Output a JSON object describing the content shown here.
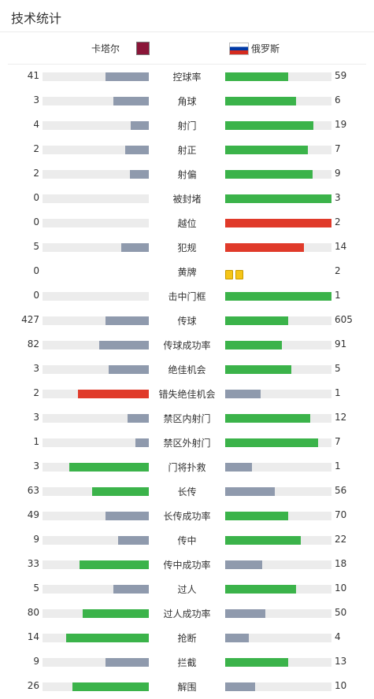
{
  "page": {
    "title": "技术统计"
  },
  "teams": {
    "home": {
      "name": "卡塔尔"
    },
    "away": {
      "name": "俄罗斯"
    }
  },
  "colors": {
    "winner": "#3bb34a",
    "loser": "#8f9aad",
    "red": "#e03a2a",
    "track": "#ececec",
    "yellow_card": "#f5c518"
  },
  "stats": [
    {
      "label": "控球率",
      "home": "41",
      "away": "59",
      "home_frac": 0.41,
      "away_frac": 0.59,
      "home_color": "loser",
      "away_color": "winner"
    },
    {
      "label": "角球",
      "home": "3",
      "away": "6",
      "home_frac": 0.333,
      "away_frac": 0.667,
      "home_color": "loser",
      "away_color": "winner"
    },
    {
      "label": "射门",
      "home": "4",
      "away": "19",
      "home_frac": 0.17,
      "away_frac": 0.83,
      "home_color": "loser",
      "away_color": "winner"
    },
    {
      "label": "射正",
      "home": "2",
      "away": "7",
      "home_frac": 0.22,
      "away_frac": 0.78,
      "home_color": "loser",
      "away_color": "winner"
    },
    {
      "label": "射偏",
      "home": "2",
      "away": "9",
      "home_frac": 0.18,
      "away_frac": 0.82,
      "home_color": "loser",
      "away_color": "winner"
    },
    {
      "label": "被封堵",
      "home": "0",
      "away": "3",
      "home_frac": 0,
      "away_frac": 1,
      "home_color": "loser",
      "away_color": "winner"
    },
    {
      "label": "越位",
      "home": "0",
      "away": "2",
      "home_frac": 0,
      "away_frac": 1,
      "home_color": "loser",
      "away_color": "red"
    },
    {
      "label": "犯规",
      "home": "5",
      "away": "14",
      "home_frac": 0.26,
      "away_frac": 0.74,
      "home_color": "loser",
      "away_color": "red"
    },
    {
      "label": "黄牌",
      "home": "0",
      "away": "2",
      "type": "cards",
      "home_cards": 0,
      "away_cards": 2
    },
    {
      "label": "击中门框",
      "home": "0",
      "away": "1",
      "home_frac": 0,
      "away_frac": 1,
      "home_color": "loser",
      "away_color": "winner"
    },
    {
      "label": "传球",
      "home": "427",
      "away": "605",
      "home_frac": 0.41,
      "away_frac": 0.59,
      "home_color": "loser",
      "away_color": "winner"
    },
    {
      "label": "传球成功率",
      "home": "82",
      "away": "91",
      "home_frac": 0.47,
      "away_frac": 0.53,
      "home_color": "loser",
      "away_color": "winner"
    },
    {
      "label": "绝佳机会",
      "home": "3",
      "away": "5",
      "home_frac": 0.375,
      "away_frac": 0.625,
      "home_color": "loser",
      "away_color": "winner"
    },
    {
      "label": "错失绝佳机会",
      "home": "2",
      "away": "1",
      "home_frac": 0.667,
      "away_frac": 0.333,
      "home_color": "red",
      "away_color": "loser"
    },
    {
      "label": "禁区内射门",
      "home": "3",
      "away": "12",
      "home_frac": 0.2,
      "away_frac": 0.8,
      "home_color": "loser",
      "away_color": "winner"
    },
    {
      "label": "禁区外射门",
      "home": "1",
      "away": "7",
      "home_frac": 0.125,
      "away_frac": 0.875,
      "home_color": "loser",
      "away_color": "winner"
    },
    {
      "label": "门将扑救",
      "home": "3",
      "away": "1",
      "home_frac": 0.75,
      "away_frac": 0.25,
      "home_color": "winner",
      "away_color": "loser"
    },
    {
      "label": "长传",
      "home": "63",
      "away": "56",
      "home_frac": 0.53,
      "away_frac": 0.47,
      "home_color": "winner",
      "away_color": "loser"
    },
    {
      "label": "长传成功率",
      "home": "49",
      "away": "70",
      "home_frac": 0.41,
      "away_frac": 0.59,
      "home_color": "loser",
      "away_color": "winner"
    },
    {
      "label": "传中",
      "home": "9",
      "away": "22",
      "home_frac": 0.29,
      "away_frac": 0.71,
      "home_color": "loser",
      "away_color": "winner"
    },
    {
      "label": "传中成功率",
      "home": "33",
      "away": "18",
      "home_frac": 0.65,
      "away_frac": 0.35,
      "home_color": "winner",
      "away_color": "loser"
    },
    {
      "label": "过人",
      "home": "5",
      "away": "10",
      "home_frac": 0.333,
      "away_frac": 0.667,
      "home_color": "loser",
      "away_color": "winner"
    },
    {
      "label": "过人成功率",
      "home": "80",
      "away": "50",
      "home_frac": 0.62,
      "away_frac": 0.38,
      "home_color": "winner",
      "away_color": "loser"
    },
    {
      "label": "抢断",
      "home": "14",
      "away": "4",
      "home_frac": 0.78,
      "away_frac": 0.22,
      "home_color": "winner",
      "away_color": "loser"
    },
    {
      "label": "拦截",
      "home": "9",
      "away": "13",
      "home_frac": 0.41,
      "away_frac": 0.59,
      "home_color": "loser",
      "away_color": "winner"
    },
    {
      "label": "解围",
      "home": "26",
      "away": "10",
      "home_frac": 0.72,
      "away_frac": 0.28,
      "home_color": "winner",
      "away_color": "loser"
    }
  ]
}
